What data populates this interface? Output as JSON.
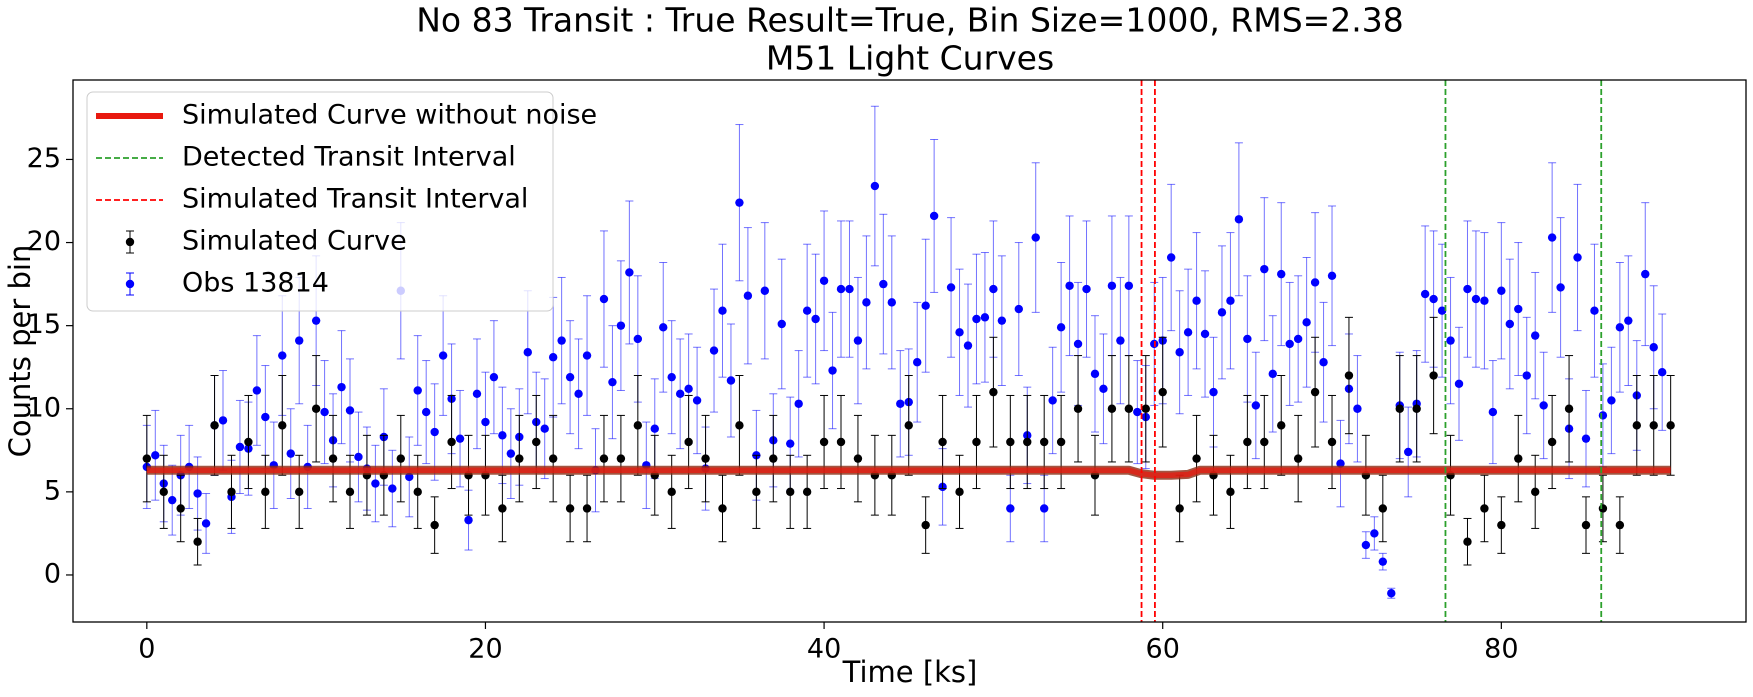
{
  "chart_data": {
    "type": "line",
    "title": "No 83 Transit : True Result=True, Bin Size=1000, RMS=2.38",
    "subtitle": "M51 Light Curves",
    "x_label": "Time [ks]",
    "y_label": "Counts per bin",
    "xlim": [
      -4.36,
      94.45
    ],
    "ylim": [
      -2.83,
      29.78
    ],
    "xticks": [
      0,
      20,
      40,
      60,
      80
    ],
    "yticks": [
      0,
      5,
      10,
      15,
      20,
      25
    ],
    "grid": false,
    "legend": "upper left",
    "series": [
      {
        "name": "Simulated Curve without noise",
        "type": "line",
        "color": "#e8190f",
        "x": [
          0,
          58,
          58.7,
          59.5,
          60.5,
          61.5,
          62.2,
          90
        ],
        "values": [
          6.3,
          6.3,
          6.1,
          6.0,
          6.0,
          6.05,
          6.3,
          6.3
        ]
      },
      {
        "name": "Detected Transit Interval",
        "type": "vline",
        "color": "#2ca02c",
        "x": [
          76.7,
          85.9
        ]
      },
      {
        "name": "Simulated Transit Interval",
        "type": "vline",
        "color": "#ff0000",
        "x": [
          58.75,
          59.54
        ]
      },
      {
        "name": "Simulated Curve",
        "type": "errorbar",
        "color": "#000000",
        "x": [
          0,
          1,
          2,
          3,
          4,
          5,
          6,
          7,
          8,
          9,
          10,
          11,
          12,
          13,
          14,
          15,
          16,
          17,
          18,
          19,
          20,
          21,
          22,
          23,
          24,
          25,
          26,
          27,
          28,
          29,
          30,
          31,
          32,
          33,
          34,
          35,
          36,
          37,
          38,
          39,
          40,
          41,
          42,
          43,
          44,
          45,
          46,
          47,
          48,
          49,
          50,
          51,
          52,
          53,
          54,
          55,
          56,
          57,
          58,
          59,
          60,
          61,
          62,
          63,
          64,
          65,
          66,
          67,
          68,
          69,
          70,
          71,
          72,
          73,
          74,
          75,
          76,
          77,
          78,
          79,
          80,
          81,
          82,
          83,
          84,
          85,
          86,
          87,
          88,
          89,
          90
        ],
        "values": [
          7,
          5,
          4,
          2,
          9,
          5,
          8,
          5,
          9,
          5,
          10,
          7,
          5,
          6,
          6,
          7,
          5,
          3,
          8,
          6,
          6,
          4,
          7,
          8,
          7,
          4,
          4,
          7,
          7,
          9,
          6,
          5,
          8,
          7,
          4,
          9,
          5,
          7,
          5,
          5,
          8,
          8,
          7,
          6,
          6,
          9,
          3,
          8,
          5,
          8,
          11,
          8,
          8,
          8,
          8,
          10,
          6,
          10,
          10,
          10,
          11,
          4,
          7,
          6,
          5,
          8,
          8,
          9,
          7,
          11,
          8,
          12,
          6,
          4,
          10,
          10,
          12,
          6,
          2,
          4,
          3,
          7,
          5,
          8,
          10,
          3,
          4,
          3,
          9,
          9,
          9
        ],
        "errors": [
          2.6,
          2.2,
          2,
          1.4,
          3,
          2.2,
          2.8,
          2.2,
          3,
          2.2,
          3.2,
          2.6,
          2.2,
          2.4,
          2.4,
          2.6,
          2.2,
          1.7,
          2.8,
          2.4,
          2.4,
          2,
          2.6,
          2.8,
          2.6,
          2,
          2,
          2.6,
          2.6,
          3,
          2.4,
          2.2,
          2.8,
          2.6,
          2,
          3,
          2.2,
          2.6,
          2.2,
          2.2,
          2.8,
          2.8,
          2.6,
          2.4,
          2.4,
          3,
          1.7,
          2.8,
          2.2,
          2.8,
          3.3,
          2.8,
          2.8,
          2.8,
          2.8,
          3.2,
          2.4,
          3.2,
          3.2,
          3.2,
          3.3,
          2,
          2.6,
          2.4,
          2.2,
          2.8,
          2.8,
          3,
          2.6,
          3.3,
          2.8,
          3.5,
          2.4,
          2,
          3.2,
          3.2,
          3.5,
          2.4,
          1.4,
          2,
          1.7,
          2.6,
          2.2,
          2.8,
          3.2,
          1.7,
          2,
          1.7,
          3,
          3,
          3
        ]
      },
      {
        "name": "Obs 13814",
        "type": "errorbar",
        "color": "#0000ff",
        "x": [
          0,
          0.5,
          1,
          1.5,
          2,
          2.5,
          3,
          3.5,
          4,
          4.5,
          5,
          5.5,
          6,
          6.5,
          7,
          7.5,
          8,
          8.5,
          9,
          9.5,
          10,
          10.5,
          11,
          11.5,
          12,
          12.5,
          13,
          13.5,
          14,
          14.5,
          15,
          15.5,
          16,
          16.5,
          17,
          17.5,
          18,
          18.5,
          19,
          19.5,
          20,
          20.5,
          21,
          21.5,
          22,
          22.5,
          23,
          23.5,
          24,
          24.5,
          25,
          25.5,
          26,
          26.5,
          27,
          27.5,
          28,
          28.5,
          29,
          29.5,
          30,
          30.5,
          31,
          31.5,
          32,
          32.5,
          33,
          33.5,
          34,
          34.5,
          35,
          35.5,
          36,
          36.5,
          37,
          37.5,
          38,
          38.5,
          39,
          39.5,
          40,
          40.5,
          41,
          41.5,
          42,
          42.5,
          43,
          43.5,
          44,
          44.5,
          45,
          45.5,
          46,
          46.5,
          47,
          47.5,
          48,
          48.5,
          49,
          49.5,
          50,
          50.5,
          51,
          51.5,
          52,
          52.5,
          53,
          53.5,
          54,
          54.5,
          55,
          55.5,
          56,
          56.5,
          57,
          57.5,
          58,
          58.5,
          59,
          59.5,
          60,
          60.5,
          61,
          61.5,
          62,
          62.5,
          63,
          63.5,
          64,
          64.5,
          65,
          65.5,
          66,
          66.5,
          67,
          67.5,
          68,
          68.5,
          69,
          69.5,
          70,
          70.5,
          71,
          71.5,
          72,
          72.5,
          73,
          73.5,
          74,
          74.5,
          75,
          75.5,
          76,
          76.5,
          77,
          77.5,
          78,
          78.5,
          79,
          79.5,
          80,
          80.5,
          81,
          81.5,
          82,
          82.5,
          83,
          83.5,
          84,
          84.5,
          85,
          85.5,
          86,
          86.5,
          87,
          87.5,
          88,
          88.5,
          89,
          89.5
        ],
        "values": [
          6.5,
          7.2,
          5.5,
          4.5,
          6,
          6.5,
          4.9,
          3.1,
          9,
          9.3,
          4.7,
          7.7,
          7.6,
          11.1,
          9.5,
          6.6,
          13.2,
          7.3,
          14.1,
          6.5,
          15.3,
          9.8,
          8.1,
          11.3,
          9.9,
          7.1,
          6.4,
          5.5,
          8.3,
          5.2,
          17.1,
          5.9,
          11.1,
          9.8,
          8.6,
          13.2,
          10.6,
          8.2,
          3.3,
          10.9,
          9.2,
          11.9,
          8.4,
          7.3,
          8.3,
          13.4,
          9.2,
          8.8,
          13.1,
          14.1,
          11.9,
          10.9,
          13.2,
          6.3,
          16.6,
          11.6,
          15,
          18.2,
          14.2,
          6.6,
          8.8,
          14.9,
          11.9,
          10.9,
          11.2,
          10.5,
          6.4,
          13.5,
          15.9,
          11.7,
          22.4,
          16.8,
          7.2,
          17.1,
          8.1,
          15.1,
          7.9,
          10.3,
          15.9,
          15.4,
          17.7,
          12.3,
          17.2,
          17.2,
          14.1,
          16.4,
          23.4,
          17.5,
          16.4,
          10.3,
          10.4,
          12.8,
          16.2,
          21.6,
          5.3,
          17.3,
          14.6,
          13.8,
          15.4,
          15.5,
          17.2,
          15.3,
          4,
          16,
          8.4,
          20.3,
          4,
          10.5,
          14.9,
          17.4,
          13.9,
          17.2,
          12.1,
          11.2,
          17.4,
          14.1,
          17.4,
          9.8,
          9.5,
          13.9,
          14.1,
          19.1,
          13.4,
          14.6,
          16.5,
          14.5,
          11,
          15.8,
          16.5,
          21.4,
          14.2,
          10.2,
          18.4,
          12.1,
          18.1,
          13.9,
          14.2,
          15.2,
          17.6,
          12.8,
          18,
          6.7,
          11.2,
          10,
          1.8,
          2.5,
          0.8,
          -1.1,
          10.2,
          7.4,
          10.3,
          16.9,
          16.6,
          15.9,
          14.1,
          11.5,
          17.2,
          16.6,
          16.5,
          9.8,
          17.1,
          15.1,
          16,
          12,
          14.4,
          10.2,
          20.3,
          17.3,
          8.8,
          19.1,
          8.2,
          15.9,
          9.6,
          10.5,
          14.9,
          15.3,
          10.8,
          18.1,
          13.7,
          12.2
        ],
        "errors": [
          2.5,
          2.7,
          2.3,
          2.1,
          2.4,
          2.5,
          2.2,
          1.8,
          3,
          3,
          2.2,
          2.8,
          2.8,
          3.3,
          3.1,
          2.6,
          3.6,
          2.7,
          3.8,
          2.5,
          3.9,
          3.1,
          2.8,
          3.4,
          3.1,
          2.7,
          2.5,
          2.3,
          2.9,
          2.3,
          4.1,
          2.4,
          3.3,
          3.1,
          2.9,
          3.6,
          3.3,
          2.9,
          1.8,
          3.3,
          3,
          3.4,
          2.9,
          2.7,
          2.9,
          3.7,
          3,
          3,
          3.6,
          3.8,
          3.4,
          3.3,
          3.6,
          2.5,
          4.1,
          3.4,
          3.9,
          4.3,
          3.8,
          2.6,
          3,
          3.9,
          3.4,
          3.3,
          3.3,
          3.2,
          2.5,
          3.7,
          4,
          3.4,
          4.7,
          4.1,
          2.7,
          4.1,
          2.8,
          3.9,
          2.8,
          3.2,
          4,
          3.9,
          4.2,
          3.5,
          4.1,
          4.1,
          3.8,
          4,
          4.8,
          4.2,
          4,
          3.2,
          3.2,
          3.6,
          4,
          4.6,
          2.3,
          4.2,
          3.8,
          3.7,
          3.9,
          3.9,
          4.1,
          3.9,
          2,
          4,
          2.9,
          4.5,
          2,
          3.2,
          3.9,
          4.2,
          3.7,
          4.1,
          3.5,
          3.3,
          4.2,
          3.8,
          4.2,
          3.1,
          3.1,
          3.7,
          3.8,
          4.4,
          3.7,
          3.8,
          4.1,
          3.8,
          3.3,
          4,
          4.1,
          4.6,
          3.8,
          3.2,
          4.3,
          3.5,
          4.3,
          3.7,
          3.8,
          3.9,
          4.2,
          3.6,
          4.2,
          2.6,
          3.3,
          3.2,
          0.8,
          1,
          0.5,
          0.3,
          3.2,
          2.7,
          3.2,
          4.1,
          4.1,
          4,
          3.8,
          3.4,
          4.1,
          4.1,
          4.1,
          3.1,
          4.1,
          3.9,
          4,
          3.5,
          3.8,
          3.2,
          4.5,
          4.2,
          3,
          4.4,
          2.9,
          4,
          3.1,
          3.2,
          3.9,
          3.9,
          3.3,
          4.3,
          3.7,
          3.5
        ]
      }
    ]
  }
}
